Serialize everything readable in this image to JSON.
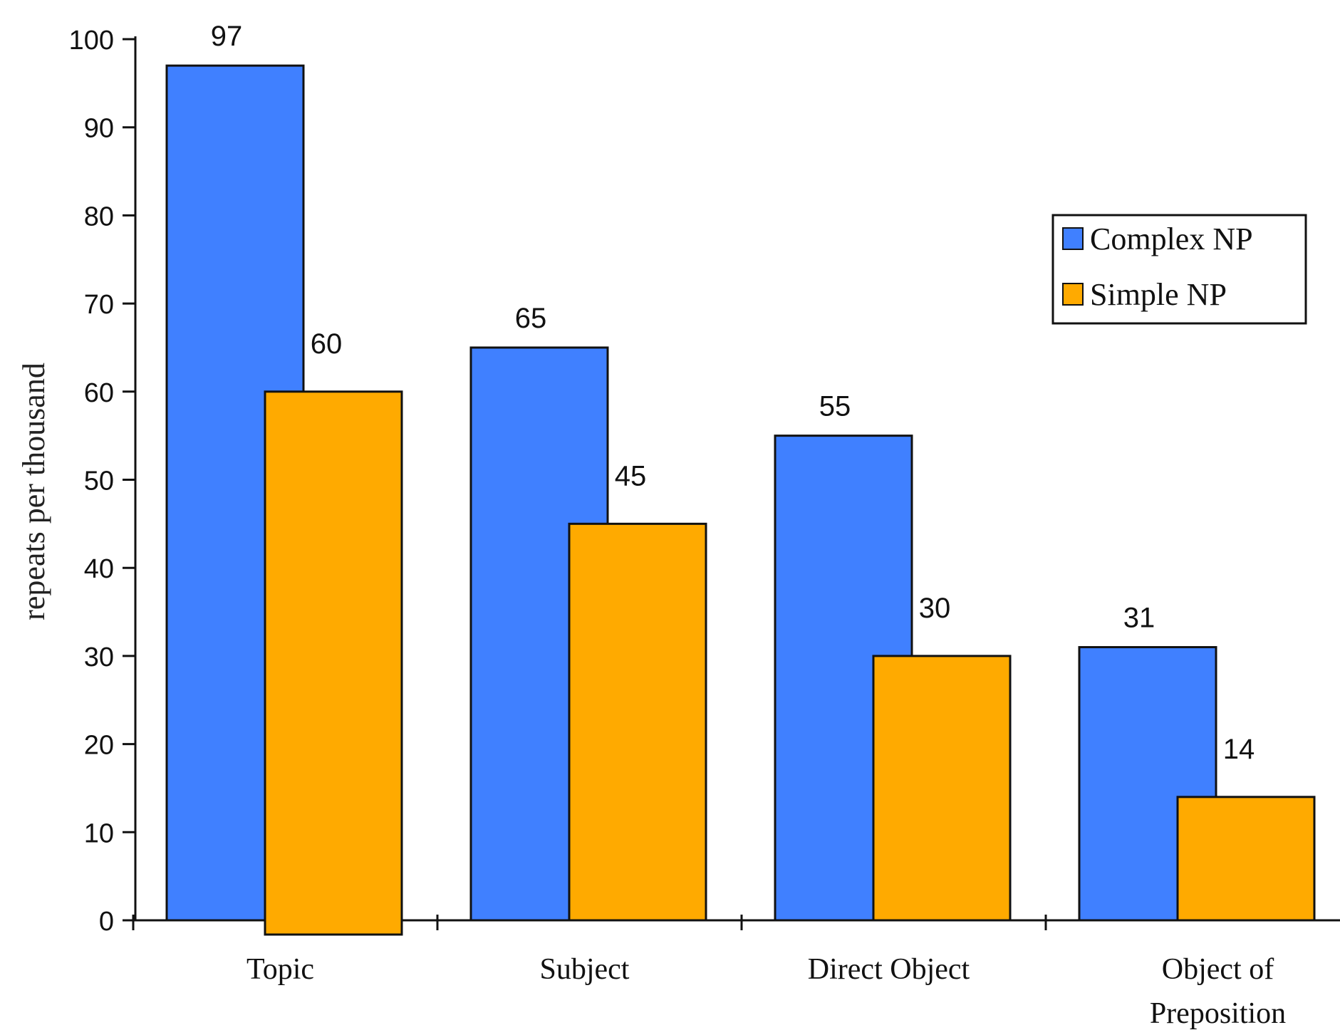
{
  "chart_data": {
    "type": "bar",
    "title": "",
    "xlabel": "",
    "ylabel": "repeats per thousand",
    "ylim": [
      0,
      100
    ],
    "yticks": [
      0,
      10,
      20,
      30,
      40,
      50,
      60,
      70,
      80,
      90,
      100
    ],
    "categories": [
      "Topic",
      "Subject",
      "Direct Object",
      "Object of Preposition"
    ],
    "series": [
      {
        "name": "Complex NP",
        "color": "#4080ff",
        "values": [
          97,
          65,
          55,
          31
        ]
      },
      {
        "name": "Simple NP",
        "color": "#ffaa00",
        "values": [
          60,
          45,
          30,
          14
        ]
      }
    ],
    "legend": "right",
    "grid": false
  }
}
